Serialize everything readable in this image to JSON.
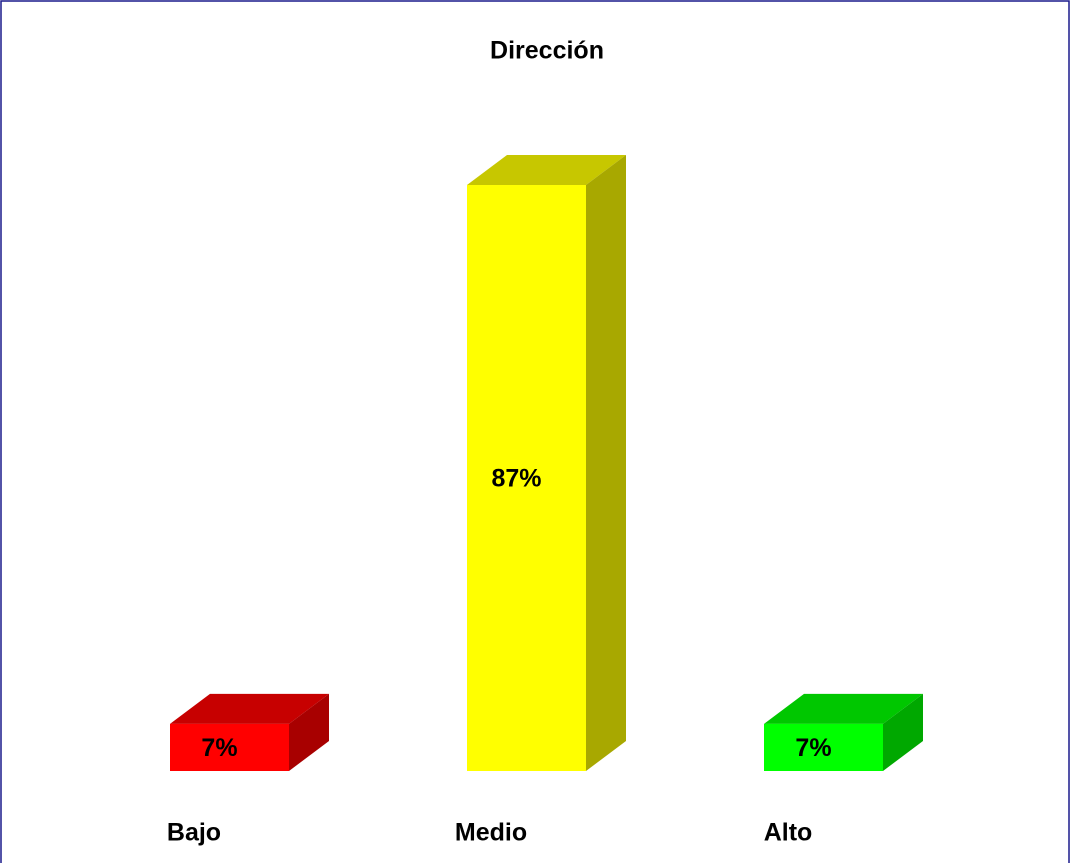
{
  "chart_data": {
    "type": "bar3d",
    "title": "Dirección",
    "categories": [
      "Bajo",
      "Medio",
      "Alto"
    ],
    "values": [
      7,
      87,
      7
    ],
    "value_labels": [
      "7%",
      "87%",
      "7%"
    ],
    "colors": [
      "#ff0000",
      "#ffff00",
      "#00ff00"
    ]
  }
}
